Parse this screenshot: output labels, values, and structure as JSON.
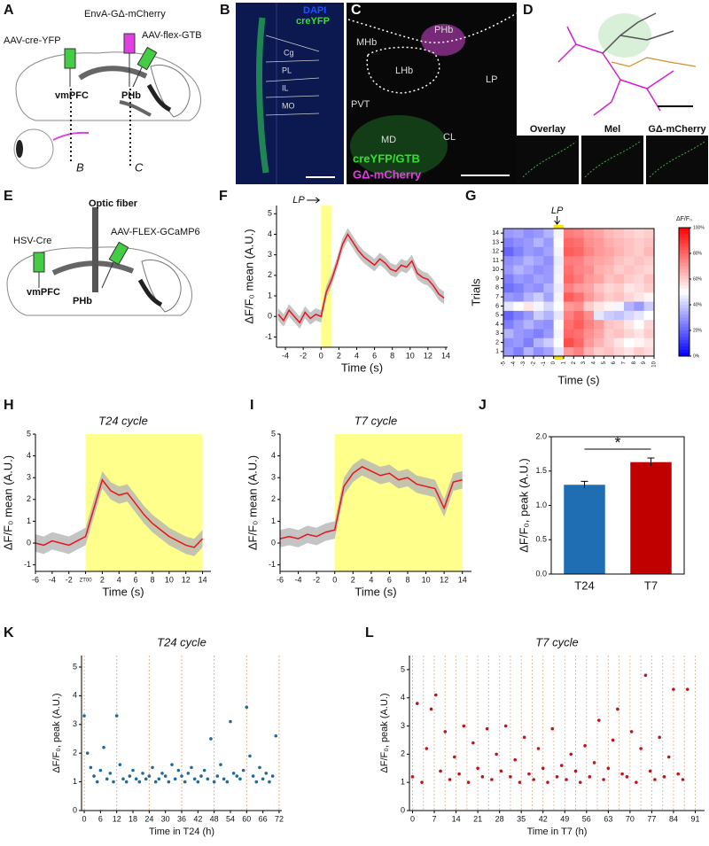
{
  "panels": {
    "A": {
      "label": "A",
      "injection_1": "AAV-cre-YFP",
      "injection_2": "EnvA-GΔ-mCherry",
      "injection_3": "AAV-flex-GTB",
      "region_1": "vmPFC",
      "region_2": "PHb",
      "section_1": "B",
      "section_2": "C"
    },
    "B": {
      "label": "B",
      "stain_1": "DAPI",
      "stain_2": "creYFP",
      "areas": [
        "Cg",
        "PL",
        "IL",
        "MO"
      ]
    },
    "C": {
      "label": "C",
      "areas": [
        "MHb",
        "PHb",
        "LHb",
        "LP",
        "PVT",
        "MD",
        "CL"
      ],
      "legend_1": "creYFP/GTB",
      "legend_2": "GΔ-mCherry"
    },
    "D": {
      "label": "D",
      "insets": [
        "Overlay",
        "Mel",
        "GΔ-mCherry"
      ]
    },
    "E": {
      "label": "E",
      "injection_1": "HSV-Cre",
      "fiber": "Optic fiber",
      "injection_2": "AAV-FLEX-GCaMP6",
      "region_1": "vmPFC",
      "region_2": "PHb"
    }
  },
  "chart_data": [
    {
      "type": "line",
      "panel": "F",
      "annotation": "LP",
      "ylabel": "ΔF/F₀ mean (A.U.)",
      "xlabel": "Time (s)",
      "x": [
        -4.8,
        -4.2,
        -3.6,
        -3,
        -2.4,
        -1.8,
        -1.2,
        -0.6,
        0,
        0.6,
        1.2,
        1.8,
        2.4,
        3,
        3.6,
        4.2,
        4.8,
        5.4,
        6,
        6.6,
        7.2,
        7.8,
        8.4,
        9,
        9.6,
        10.2,
        10.8,
        11.4,
        12,
        12.6,
        13.2,
        13.8
      ],
      "values": [
        0.1,
        -0.2,
        0.3,
        0,
        -0.3,
        0.2,
        -0.1,
        0.1,
        0,
        1.2,
        1.8,
        2.6,
        3.5,
        4.0,
        3.6,
        3.2,
        2.9,
        2.7,
        2.5,
        2.8,
        2.6,
        2.3,
        2.2,
        2.5,
        2.4,
        2.7,
        2.1,
        1.9,
        1.8,
        1.5,
        1.1,
        0.9
      ],
      "sem": 0.3,
      "color": "#e8141c",
      "band_color": "#b5b5b5",
      "highlight": {
        "from": 0,
        "to": 1.2,
        "color": "#ffff8c"
      },
      "xlim": [
        -5,
        14.2
      ],
      "ylim": [
        -1.5,
        5.4
      ],
      "xticks": [
        -4,
        -2,
        0,
        2,
        4,
        6,
        8,
        10,
        12,
        14
      ],
      "yticks": [
        -1,
        0,
        1,
        2,
        3,
        4,
        5
      ]
    },
    {
      "type": "heatmap",
      "panel": "G",
      "annotation": "LP",
      "ylabel": "Trials",
      "xlabel": "Time (s)",
      "x": [
        -5,
        -4,
        -3,
        -2,
        -1,
        0,
        1,
        2,
        3,
        4,
        5,
        6,
        7,
        8,
        9
      ],
      "y": [
        1,
        2,
        3,
        4,
        5,
        6,
        7,
        8,
        9,
        10,
        11,
        12,
        13,
        14
      ],
      "values": [
        [
          30,
          25,
          35,
          28,
          32,
          45,
          70,
          75,
          65,
          60,
          62,
          58,
          55,
          60,
          57
        ],
        [
          28,
          30,
          25,
          35,
          40,
          50,
          85,
          80,
          70,
          65,
          60,
          55,
          50,
          52,
          55
        ],
        [
          35,
          30,
          28,
          25,
          30,
          48,
          80,
          78,
          72,
          68,
          60,
          62,
          58,
          55,
          60
        ],
        [
          25,
          30,
          35,
          30,
          28,
          50,
          78,
          82,
          75,
          70,
          62,
          60,
          55,
          50,
          58
        ],
        [
          20,
          25,
          30,
          40,
          35,
          45,
          75,
          80,
          72,
          45,
          40,
          38,
          42,
          45,
          50
        ],
        [
          45,
          50,
          55,
          48,
          42,
          50,
          70,
          72,
          60,
          55,
          52,
          48,
          35,
          30,
          40
        ],
        [
          30,
          28,
          35,
          40,
          32,
          48,
          82,
          78,
          70,
          65,
          60,
          62,
          58,
          55,
          52
        ],
        [
          22,
          25,
          30,
          28,
          35,
          46,
          75,
          70,
          68,
          62,
          58,
          60,
          55,
          57,
          60
        ],
        [
          25,
          30,
          28,
          32,
          30,
          48,
          80,
          76,
          70,
          68,
          62,
          64,
          60,
          58,
          62
        ],
        [
          30,
          35,
          32,
          28,
          30,
          47,
          78,
          74,
          72,
          66,
          64,
          60,
          62,
          60,
          58
        ],
        [
          28,
          30,
          35,
          32,
          28,
          46,
          76,
          75,
          70,
          68,
          66,
          62,
          60,
          62,
          60
        ],
        [
          20,
          25,
          30,
          28,
          32,
          48,
          82,
          80,
          74,
          70,
          68,
          65,
          62,
          60,
          64
        ],
        [
          25,
          28,
          30,
          35,
          30,
          50,
          80,
          78,
          72,
          70,
          66,
          64,
          62,
          60,
          62
        ],
        [
          30,
          32,
          28,
          30,
          35,
          48,
          76,
          74,
          70,
          68,
          64,
          62,
          60,
          58,
          60
        ]
      ],
      "colormap": [
        "#0000ff",
        "#ffffff",
        "#ff0000"
      ],
      "highlight": {
        "from": 0,
        "to": 1,
        "color": "#ffe600"
      },
      "colorbar": {
        "title": "ΔF/F₀",
        "ticks": [
          {
            "value": 0,
            "label": "0%"
          },
          {
            "value": 20,
            "label": "20%"
          },
          {
            "value": 40,
            "label": "40%"
          },
          {
            "value": 60,
            "label": "60%"
          },
          {
            "value": 80,
            "label": "80%"
          },
          {
            "value": 100,
            "label": "100%"
          }
        ]
      },
      "xlim": [
        -5,
        10
      ],
      "ylim": [
        0.5,
        14.5
      ],
      "xticks": [
        -5,
        -4,
        -3,
        -2,
        -1,
        0,
        1,
        2,
        3,
        4,
        5,
        6,
        7,
        8,
        9,
        10
      ],
      "yticks": [
        1,
        2,
        3,
        4,
        5,
        6,
        7,
        8,
        9,
        10,
        11,
        12,
        13,
        14
      ]
    },
    {
      "type": "line",
      "panel": "H",
      "title": "T24 cycle",
      "ylabel": "ΔF/F₀ mean (A.U.)",
      "xlabel": "Time (s)",
      "x": [
        -6,
        -5,
        -4,
        -3,
        -2,
        -1,
        0,
        1,
        2,
        3,
        4,
        5,
        6,
        7,
        8,
        9,
        10,
        11,
        12,
        13,
        14
      ],
      "values": [
        0,
        -0.1,
        0.1,
        0,
        -0.1,
        0.1,
        0.3,
        1.6,
        2.9,
        2.4,
        2.2,
        2.3,
        1.8,
        1.3,
        0.9,
        0.6,
        0.3,
        0.1,
        -0.1,
        -0.2,
        0.2
      ],
      "sem": 0.4,
      "color": "#e8141c",
      "band_color": "#b5b5b5",
      "highlight": {
        "from": 0,
        "to": 14,
        "color": "#ffff8c"
      },
      "xlim": [
        -6,
        15
      ],
      "ylim": [
        -1.3,
        5
      ],
      "xticks": [
        -6,
        -4,
        -2,
        {
          "value": 0,
          "label": "ZT00"
        },
        2,
        4,
        6,
        8,
        10,
        12,
        14
      ],
      "yticks": [
        -1,
        0,
        1,
        2,
        3,
        4,
        5
      ]
    },
    {
      "type": "line",
      "panel": "I",
      "title": "T7 cycle",
      "ylabel": "ΔF/F₀ mean (A.U.)",
      "xlabel": "Time (s)",
      "x": [
        -6,
        -5,
        -4,
        -3,
        -2,
        -1,
        0,
        1,
        2,
        3,
        4,
        5,
        6,
        7,
        8,
        9,
        10,
        11,
        12,
        13,
        14
      ],
      "values": [
        0.2,
        0.3,
        0.2,
        0.4,
        0.3,
        0.5,
        0.6,
        2.6,
        3.2,
        3.5,
        3.3,
        3.1,
        3.2,
        2.9,
        3.0,
        2.7,
        2.6,
        2.5,
        1.6,
        2.8,
        2.9
      ],
      "sem": 0.4,
      "color": "#e8141c",
      "band_color": "#b5b5b5",
      "highlight": {
        "from": 0,
        "to": 14,
        "color": "#ffff8c"
      },
      "xlim": [
        -6,
        15
      ],
      "ylim": [
        -1.3,
        5
      ],
      "xticks": [
        -6,
        -4,
        -2,
        0,
        2,
        4,
        6,
        8,
        10,
        12,
        14
      ],
      "yticks": [
        -1,
        0,
        1,
        2,
        3,
        4,
        5
      ]
    },
    {
      "type": "bar",
      "panel": "J",
      "ylabel": "ΔF/F₀, peak (A.U.)",
      "significance": "*",
      "categories": [
        "T24",
        "T7"
      ],
      "values": [
        1.3,
        1.63
      ],
      "errors": [
        0.05,
        0.06
      ],
      "colors": [
        "#1f6db3",
        "#c00000"
      ],
      "ylim": [
        0,
        2
      ],
      "yticks": [
        {
          "value": 0,
          "label": "0.0"
        },
        {
          "value": 0.5,
          "label": "0.5"
        },
        {
          "value": 1,
          "label": "1.0"
        },
        {
          "value": 1.5,
          "label": "1.5"
        },
        {
          "value": 2,
          "label": "2.0"
        }
      ]
    },
    {
      "type": "scatter",
      "panel": "K",
      "title": "T24 cycle",
      "ylabel": "ΔF/F₀, peak (A.U.)",
      "xlabel": "Time in T24 (h)",
      "color": "#1f6b9a",
      "x": [
        0,
        1.2,
        2.4,
        3.6,
        4.8,
        6,
        7.2,
        8.4,
        9.6,
        10.8,
        12,
        13.2,
        14.4,
        15.6,
        16.8,
        18,
        19.2,
        20.4,
        21.6,
        22.8,
        24,
        25.2,
        26.4,
        27.6,
        28.8,
        30,
        31.2,
        32.4,
        33.6,
        34.8,
        36,
        37.2,
        38.4,
        39.6,
        40.8,
        42,
        43.2,
        44.4,
        45.6,
        46.8,
        48,
        49.2,
        50.4,
        51.6,
        52.8,
        54,
        55.2,
        56.4,
        57.6,
        58.8,
        60,
        61.2,
        62.4,
        63.6,
        64.8,
        66,
        67.2,
        68.4,
        69.6,
        70.8
      ],
      "values": [
        3.3,
        2.0,
        1.5,
        1.2,
        1.0,
        1.4,
        2.2,
        1.1,
        1.3,
        1.0,
        3.3,
        1.6,
        1.1,
        1.0,
        1.2,
        1.4,
        1.1,
        1.0,
        1.3,
        1.1,
        1.2,
        1.5,
        1.0,
        1.1,
        1.3,
        1.2,
        1.0,
        1.6,
        1.1,
        1.4,
        1.2,
        1.0,
        1.3,
        1.5,
        1.1,
        1.0,
        1.2,
        1.4,
        1.1,
        2.5,
        1.0,
        1.2,
        1.6,
        1.1,
        1.0,
        3.1,
        1.3,
        1.2,
        1.1,
        1.4,
        3.6,
        1.9,
        1.2,
        1.0,
        1.5,
        1.1,
        1.3,
        1.0,
        1.2,
        2.6
      ],
      "light_transitions": [
        0,
        12,
        24,
        36,
        48,
        60,
        72
      ],
      "transition_color": "#e8b080",
      "xlim": [
        -1,
        73
      ],
      "ylim": [
        0,
        5.4
      ],
      "xticks": [
        0,
        6,
        12,
        18,
        24,
        30,
        36,
        42,
        48,
        54,
        60,
        66,
        72
      ],
      "yticks": [
        0,
        1,
        2,
        3,
        4,
        5
      ]
    },
    {
      "type": "scatter",
      "panel": "L",
      "title": "T7 cycle",
      "ylabel": "ΔF/F₀, peak (A.U.)",
      "xlabel": "Time in T7 (h)",
      "color": "#c0141c",
      "x": [
        0,
        1.5,
        3,
        4.5,
        6,
        7.5,
        9,
        10.5,
        12,
        13.5,
        15,
        16.5,
        18,
        19.5,
        21,
        22.5,
        24,
        25.5,
        27,
        28.5,
        30,
        31.5,
        33,
        34.5,
        36,
        37.5,
        39,
        40.5,
        42,
        43.5,
        45,
        46.5,
        48,
        49.5,
        51,
        52.5,
        54,
        55.5,
        57,
        58.5,
        60,
        61.5,
        63,
        64.5,
        66,
        67.5,
        69,
        70.5,
        72,
        73.5,
        75,
        76.5,
        78,
        79.5,
        81,
        82.5,
        84,
        85.5,
        87,
        88.5
      ],
      "values": [
        1.2,
        3.8,
        1.0,
        2.2,
        3.6,
        4.1,
        1.4,
        2.8,
        1.1,
        1.9,
        1.3,
        3.0,
        1.0,
        2.4,
        1.5,
        1.2,
        2.9,
        1.1,
        2.0,
        1.4,
        3.0,
        1.2,
        1.8,
        1.0,
        2.6,
        1.3,
        1.1,
        2.2,
        1.5,
        1.0,
        2.9,
        1.2,
        1.6,
        1.1,
        2.0,
        1.4,
        1.0,
        2.3,
        1.2,
        1.7,
        3.2,
        1.1,
        1.5,
        2.5,
        3.6,
        1.3,
        1.2,
        2.8,
        1.0,
        2.2,
        4.8,
        1.4,
        1.1,
        2.6,
        1.2,
        1.9,
        4.3,
        1.3,
        1.1,
        4.3
      ],
      "light_transitions": [
        0,
        3.5,
        7,
        10.5,
        14,
        17.5,
        21,
        24.5,
        28,
        31.5,
        35,
        38.5,
        42,
        45.5,
        49,
        52.5,
        56,
        59.5,
        63,
        66.5,
        70,
        73.5,
        77,
        80.5,
        84,
        87.5,
        91
      ],
      "transition_color": "#e0c0a0",
      "xlim": [
        -1,
        94
      ],
      "ylim": [
        0,
        5.5
      ],
      "xticks": [
        0,
        7,
        14,
        21,
        28,
        35,
        42,
        49,
        56,
        63,
        70,
        77,
        84,
        91
      ],
      "yticks": [
        0,
        1,
        2,
        3,
        4,
        5
      ]
    }
  ]
}
